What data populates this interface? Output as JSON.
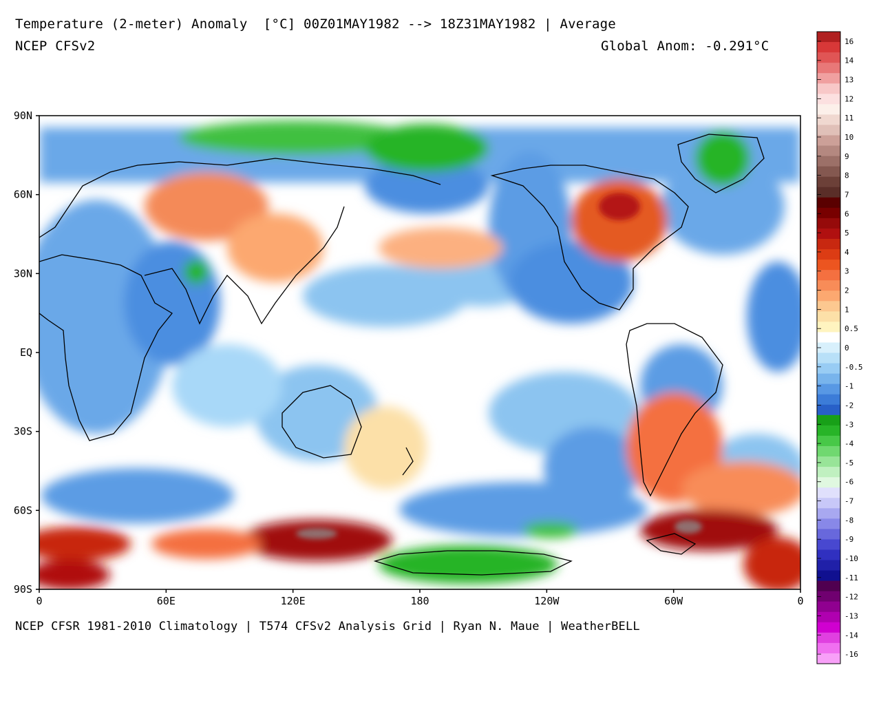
{
  "header": {
    "title": "Temperature (2-meter) Anomaly  [°C] 00Z01MAY1982 --> 18Z31MAY1982 | Average",
    "model": "NCEP CFSv2",
    "global_anom": "Global Anom: -0.291°C"
  },
  "footer": {
    "credits": "NCEP CFSR 1981-2010 Climatology | T574 CFSv2 Analysis Grid | Ryan N. Maue | WeatherBELL"
  },
  "map": {
    "lat_ticks": [
      "90N",
      "60N",
      "30N",
      "EQ",
      "30S",
      "60S",
      "90S"
    ],
    "lon_ticks": [
      "0",
      "60E",
      "120E",
      "180",
      "120W",
      "60W",
      "0"
    ]
  },
  "colorbar": {
    "labels": [
      "16",
      "14",
      "13",
      "12",
      "11",
      "10",
      "9",
      "8",
      "7",
      "6",
      "5",
      "4",
      "3",
      "2",
      "1",
      "0.5",
      "0",
      "-0.5",
      "-1",
      "-2",
      "-3",
      "-4",
      "-5",
      "-6",
      "-7",
      "-8",
      "-9",
      "-10",
      "-11",
      "-12",
      "-13",
      "-14",
      "-16"
    ],
    "colors": [
      "#b02020",
      "#d83838",
      "#e05555",
      "#e87878",
      "#f0a0a0",
      "#f8c8c8",
      "#fce0e0",
      "#fcf0ea",
      "#f0d8d0",
      "#e0c0b8",
      "#cca098",
      "#b48880",
      "#9c7068",
      "#845850",
      "#6c4038",
      "#5a2e28",
      "#5a0000",
      "#780000",
      "#960a0a",
      "#b01010",
      "#c82810",
      "#dc3c14",
      "#ec5520",
      "#f47040",
      "#f88c58",
      "#fca870",
      "#fcc890",
      "#fce0a8",
      "#fff4c0",
      "#ffffff",
      "#d8f0fc",
      "#b8e0f8",
      "#98ccf4",
      "#78b4ec",
      "#5898e4",
      "#3c7cd8",
      "#2860c8",
      "#18a018",
      "#28b428",
      "#48c848",
      "#70d870",
      "#98e498",
      "#c0f0c0",
      "#e0f8e0",
      "#e0e0fc",
      "#c8c8f8",
      "#a8a8f0",
      "#8888e8",
      "#6868dc",
      "#4848d0",
      "#3030c0",
      "#2020a8",
      "#101090",
      "#500050",
      "#700070",
      "#900090",
      "#b000b0",
      "#d000d0",
      "#e040e0",
      "#f070f0",
      "#f8a0f8"
    ]
  }
}
